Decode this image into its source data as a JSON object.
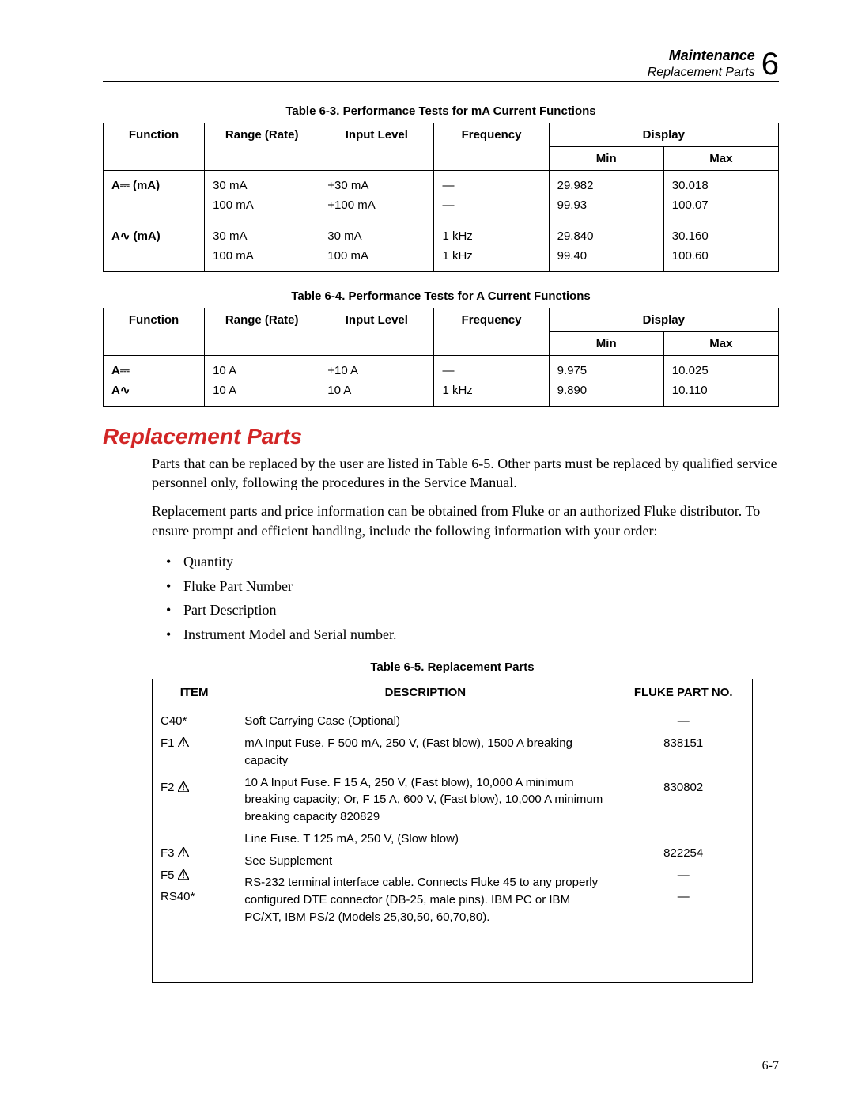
{
  "header": {
    "title": "Maintenance",
    "subtitle": "Replacement Parts",
    "chapter": "6"
  },
  "table63": {
    "caption": "Table 6-3. Performance Tests for mA Current Functions",
    "cols": {
      "fn": "Function",
      "range": "Range (Rate)",
      "input": "Input Level",
      "freq": "Frequency",
      "display": "Display",
      "min": "Min",
      "max": "Max"
    },
    "rows": [
      {
        "fn": "A⎓ (mA)",
        "range": "30 mA\n100 mA",
        "input": "+30 mA\n+100 mA",
        "freq": "—\n—",
        "min": "29.982\n99.93",
        "max": "30.018\n100.07"
      },
      {
        "fn": "A∿ (mA)",
        "range": "30 mA\n100 mA",
        "input": "30 mA\n100 mA",
        "freq": "1 kHz\n1 kHz",
        "min": "29.840\n99.40",
        "max": "30.160\n100.60"
      }
    ]
  },
  "table64": {
    "caption": "Table 6-4. Performance Tests for A Current Functions",
    "rows": [
      {
        "fn": "A⎓\nA∿",
        "range": "10 A\n10 A",
        "input": "+10 A\n10 A",
        "freq": "—\n1 kHz",
        "min": "9.975\n9.890",
        "max": "10.025\n10.110"
      }
    ]
  },
  "section": {
    "heading": "Replacement Parts",
    "para1": "Parts that can be replaced by the user are listed in Table 6-5. Other parts must be replaced by qualified service personnel only, following the procedures in the Service Manual.",
    "para2": "Replacement parts and price information can be obtained from Fluke or an authorized Fluke distributor. To ensure prompt and efficient handling, include the following information with your order:",
    "bullets": [
      "Quantity",
      "Fluke Part Number",
      "Part Description",
      "Instrument Model and Serial number."
    ]
  },
  "table65": {
    "caption": "Table 6-5. Replacement Parts",
    "cols": {
      "item": "ITEM",
      "desc": "DESCRIPTION",
      "part": "FLUKE PART NO."
    },
    "rows": [
      {
        "item": "C40*",
        "warn": false,
        "desc": "Soft Carrying Case (Optional)",
        "part": "—"
      },
      {
        "item": "F1",
        "warn": true,
        "desc": "mA Input Fuse. F 500 mA, 250 V, (Fast blow), 1500 A breaking capacity",
        "part": "838151"
      },
      {
        "item": "F2",
        "warn": true,
        "desc": "10 A Input Fuse. F 15 A, 250 V, (Fast blow), 10,000 A minimum breaking capacity; Or, F 15 A, 600 V, (Fast blow), 10,000 A minimum breaking capacity 820829",
        "part": "830802"
      },
      {
        "item": "F3",
        "warn": true,
        "desc": "Line Fuse. T 125 mA, 250 V, (Slow blow)",
        "part": "822254"
      },
      {
        "item": "F5",
        "warn": true,
        "desc": "See Supplement",
        "part": "—"
      },
      {
        "item": "RS40*",
        "warn": false,
        "desc": "RS-232 terminal interface cable. Connects Fluke 45 to any properly configured DTE connector (DB-25, male pins). IBM PC or IBM PC/XT, IBM PS/2 (Models 25,30,50, 60,70,80).",
        "part": "—"
      }
    ]
  },
  "pagenum": "6-7",
  "colwidths_perf": [
    "15%",
    "17%",
    "17%",
    "17%",
    "17%",
    "17%"
  ],
  "colwidths_parts": [
    "14%",
    "63%",
    "23%"
  ]
}
